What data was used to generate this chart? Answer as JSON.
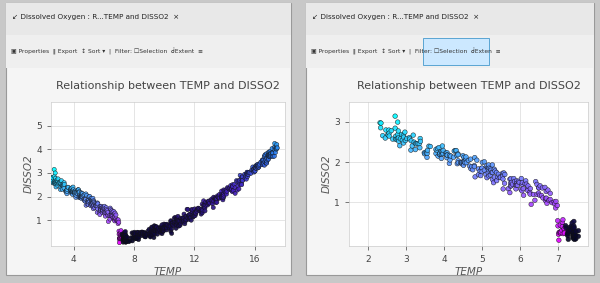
{
  "title": "Relationship between TEMP and DISSO2",
  "xlabel": "TEMP",
  "ylabel": "DISSO2",
  "window_title": "Dissolved Oxygen : R...TEMP and DISSO2",
  "left_plot": {
    "xlim": [
      2.5,
      18.0
    ],
    "ylim": [
      -0.1,
      6.0
    ],
    "xticks": [
      4,
      8,
      12,
      16
    ],
    "yticks": [
      1,
      2,
      3,
      4,
      5
    ]
  },
  "right_plot": {
    "xlim": [
      1.5,
      7.8
    ],
    "ylim": [
      -0.1,
      3.5
    ],
    "xticks": [
      2,
      3,
      4,
      5,
      6,
      7
    ],
    "yticks": [
      1,
      2,
      3
    ]
  },
  "panel_bg": "#f5f5f5",
  "plot_bg": "#ffffff",
  "titlebar_bg": "#e8e8e8",
  "toolbar_bg": "#efefef",
  "border_color": "#999999",
  "title_color": "#444444",
  "axis_label_color": "#555555",
  "tick_color": "#444444",
  "grid_color": "#e0e0e0",
  "outer_bg": "#c8c8c8"
}
